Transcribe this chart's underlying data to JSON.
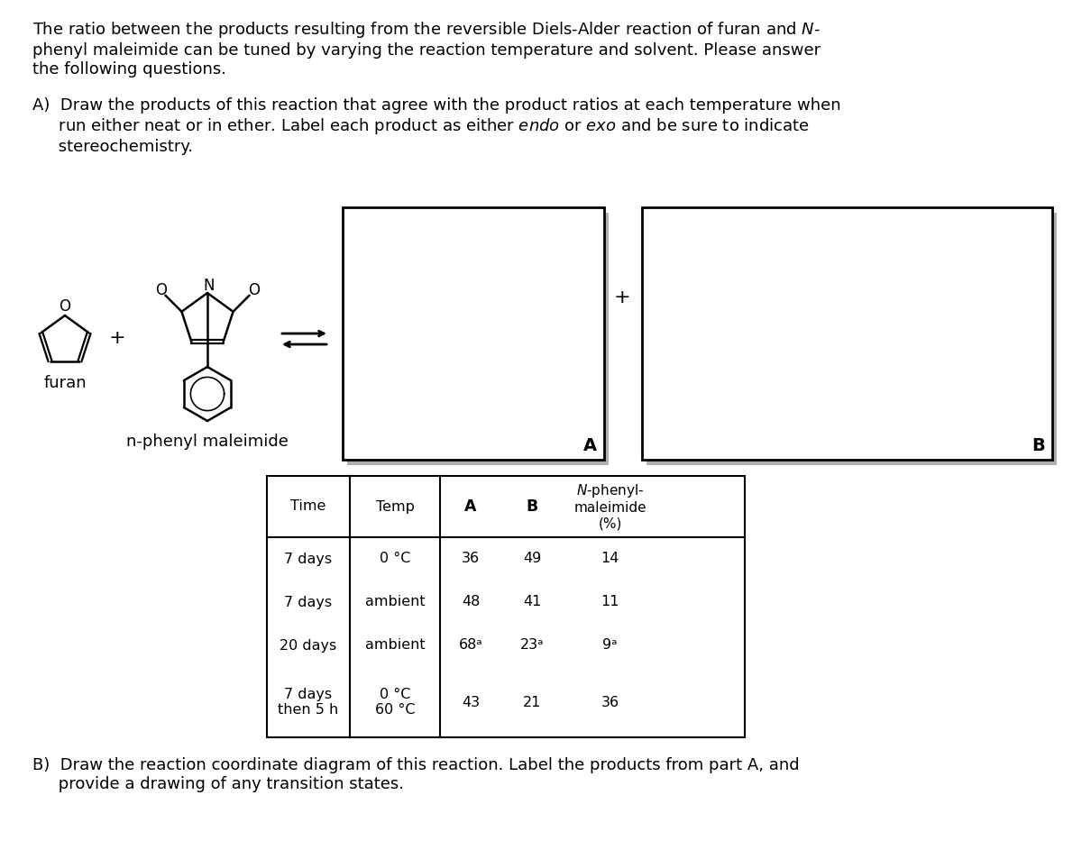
{
  "bg": "#ffffff",
  "fs": 13,
  "fs_small": 11.5,
  "intro": "The ratio between the products resulting from the reversible Diels-Alder reaction of furan and $N$-\nphenyl maleimide can be tuned by varying the reaction temperature and solvent. Please answer\nthe following questions.",
  "secA": "A)  Draw the products of this reaction that agree with the product ratios at each temperature when\n     run either neat or in ether. Label each product as either $endo$ or $exo$ and be sure to indicate\n     stereochemistry.",
  "secB": "B)  Draw the reaction coordinate diagram of this reaction. Label the products from part A, and\n     provide a drawing of any transition states.",
  "label_furan": "furan",
  "label_npm": "n-phenyl maleimide",
  "table_col_headers": [
    "Time",
    "Temp",
    "A",
    "B",
    "N-phenyl-\nmaleimide\n(%)"
  ],
  "table_rows": [
    [
      "7 days",
      "0 °C",
      "36",
      "49",
      "14"
    ],
    [
      "7 days",
      "ambient",
      "48",
      "41",
      "11"
    ],
    [
      "20 days",
      "ambient",
      "68ᵃ",
      "23ᵃ",
      "9ᵃ"
    ],
    [
      "7 days\nthen 5 h",
      "0 °C\n60 °C",
      "43",
      "21",
      "36"
    ]
  ]
}
